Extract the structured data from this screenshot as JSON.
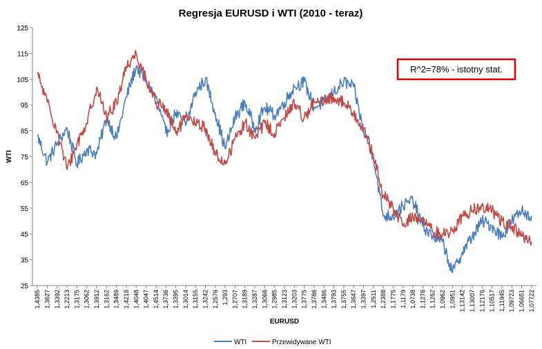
{
  "chart_data": {
    "type": "line",
    "title": "Regresja EURUSD  i WTI  (2010 - teraz)",
    "xlabel": "EURUSD",
    "ylabel": "WTI",
    "ylim": [
      25,
      125
    ],
    "yticks": [
      25,
      35,
      45,
      55,
      65,
      75,
      85,
      95,
      105,
      115,
      125
    ],
    "categories": [
      "1,4385",
      "1,3627",
      "1,3392",
      "1,2213",
      "1,3175",
      "1,3062",
      "1,3912",
      "1,3162",
      "1,3489",
      "1,4218",
      "1,4048",
      "1,4047",
      "1,4514",
      "1,3736",
      "1,3395",
      "1,3014",
      "1,3155",
      "1,3242",
      "1,2576",
      "1,293",
      "1,2707",
      "1,3189",
      "1,3287",
      "1,3066",
      "1,2985",
      "1,3123",
      "1,3203",
      "1,3775",
      "1,3786",
      "1,3486",
      "1,3793",
      "1,3755",
      "1,3647",
      "1,3397",
      "1,2511",
      "1,2388",
      "1,1775",
      "1,1179",
      "1,0738",
      "1,1276",
      "1,1262",
      "1,0962",
      "1,0951",
      "1,13142",
      "1,13007",
      "1,12176",
      "1,10517",
      "1,11945",
      "1,09723",
      "1,06651",
      "1,07722"
    ],
    "series": [
      {
        "name": "WTI",
        "color": "#4a7ebb",
        "values": [
          83,
          73,
          80,
          86,
          72,
          78,
          76,
          90,
          82,
          98,
          110,
          104,
          98,
          84,
          92,
          87,
          100,
          105,
          92,
          78,
          90,
          96,
          86,
          94,
          91,
          96,
          102,
          104,
          94,
          96,
          100,
          104,
          102,
          85,
          75,
          52,
          52,
          56,
          58,
          48,
          44,
          42,
          30,
          38,
          44,
          50,
          48,
          44,
          50,
          54,
          52
        ]
      },
      {
        "name": "Przewidywane WTI",
        "color": "#be4b48",
        "values": [
          107,
          96,
          85,
          70,
          80,
          88,
          102,
          90,
          96,
          110,
          115,
          105,
          96,
          93,
          84,
          90,
          88,
          86,
          76,
          72,
          82,
          88,
          82,
          88,
          84,
          90,
          96,
          90,
          96,
          96,
          98,
          96,
          92,
          86,
          75,
          60,
          55,
          48,
          52,
          50,
          46,
          45,
          46,
          52,
          54,
          56,
          54,
          50,
          48,
          44,
          42
        ]
      }
    ],
    "legend": "bottom",
    "annotation": "R^2=78% - istotny stat."
  }
}
